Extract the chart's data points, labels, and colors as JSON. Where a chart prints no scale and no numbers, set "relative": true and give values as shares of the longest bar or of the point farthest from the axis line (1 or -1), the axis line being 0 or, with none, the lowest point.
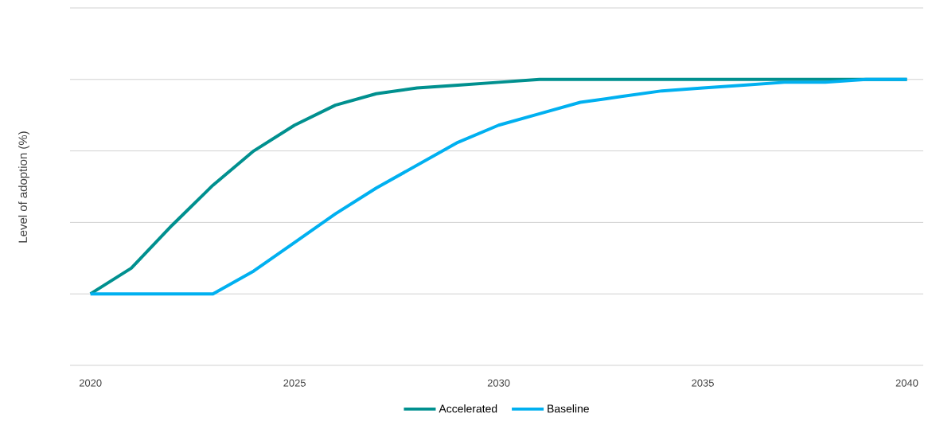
{
  "chart_data": {
    "type": "line",
    "ylabel": "Level of adoption (%)",
    "relative": true,
    "x": [
      2020,
      2021,
      2022,
      2023,
      2024,
      2025,
      2026,
      2027,
      2028,
      2029,
      2030,
      2031,
      2032,
      2033,
      2034,
      2035,
      2036,
      2037,
      2038,
      2039,
      2040
    ],
    "xlim": [
      2019.5,
      2040.4
    ],
    "xticks": [
      2020,
      2025,
      2030,
      2035,
      2040
    ],
    "series": [
      {
        "name": "Accelerated",
        "color": "#00908f",
        "values": [
          0.25,
          0.34,
          0.49,
          0.63,
          0.75,
          0.84,
          0.91,
          0.95,
          0.97,
          0.98,
          0.99,
          1.0,
          1.0,
          1.0,
          1.0,
          1.0,
          1.0,
          1.0,
          1.0,
          1.0,
          1.0
        ]
      },
      {
        "name": "Baseline",
        "color": "#00b0f0",
        "values": [
          0.25,
          0.25,
          0.25,
          0.25,
          0.33,
          0.43,
          0.53,
          0.62,
          0.7,
          0.78,
          0.84,
          0.88,
          0.92,
          0.94,
          0.96,
          0.97,
          0.98,
          0.99,
          0.99,
          1.0,
          1.0
        ]
      }
    ],
    "grid": "y",
    "legend": "bottom",
    "marker": "none",
    "line_style": "solid"
  }
}
